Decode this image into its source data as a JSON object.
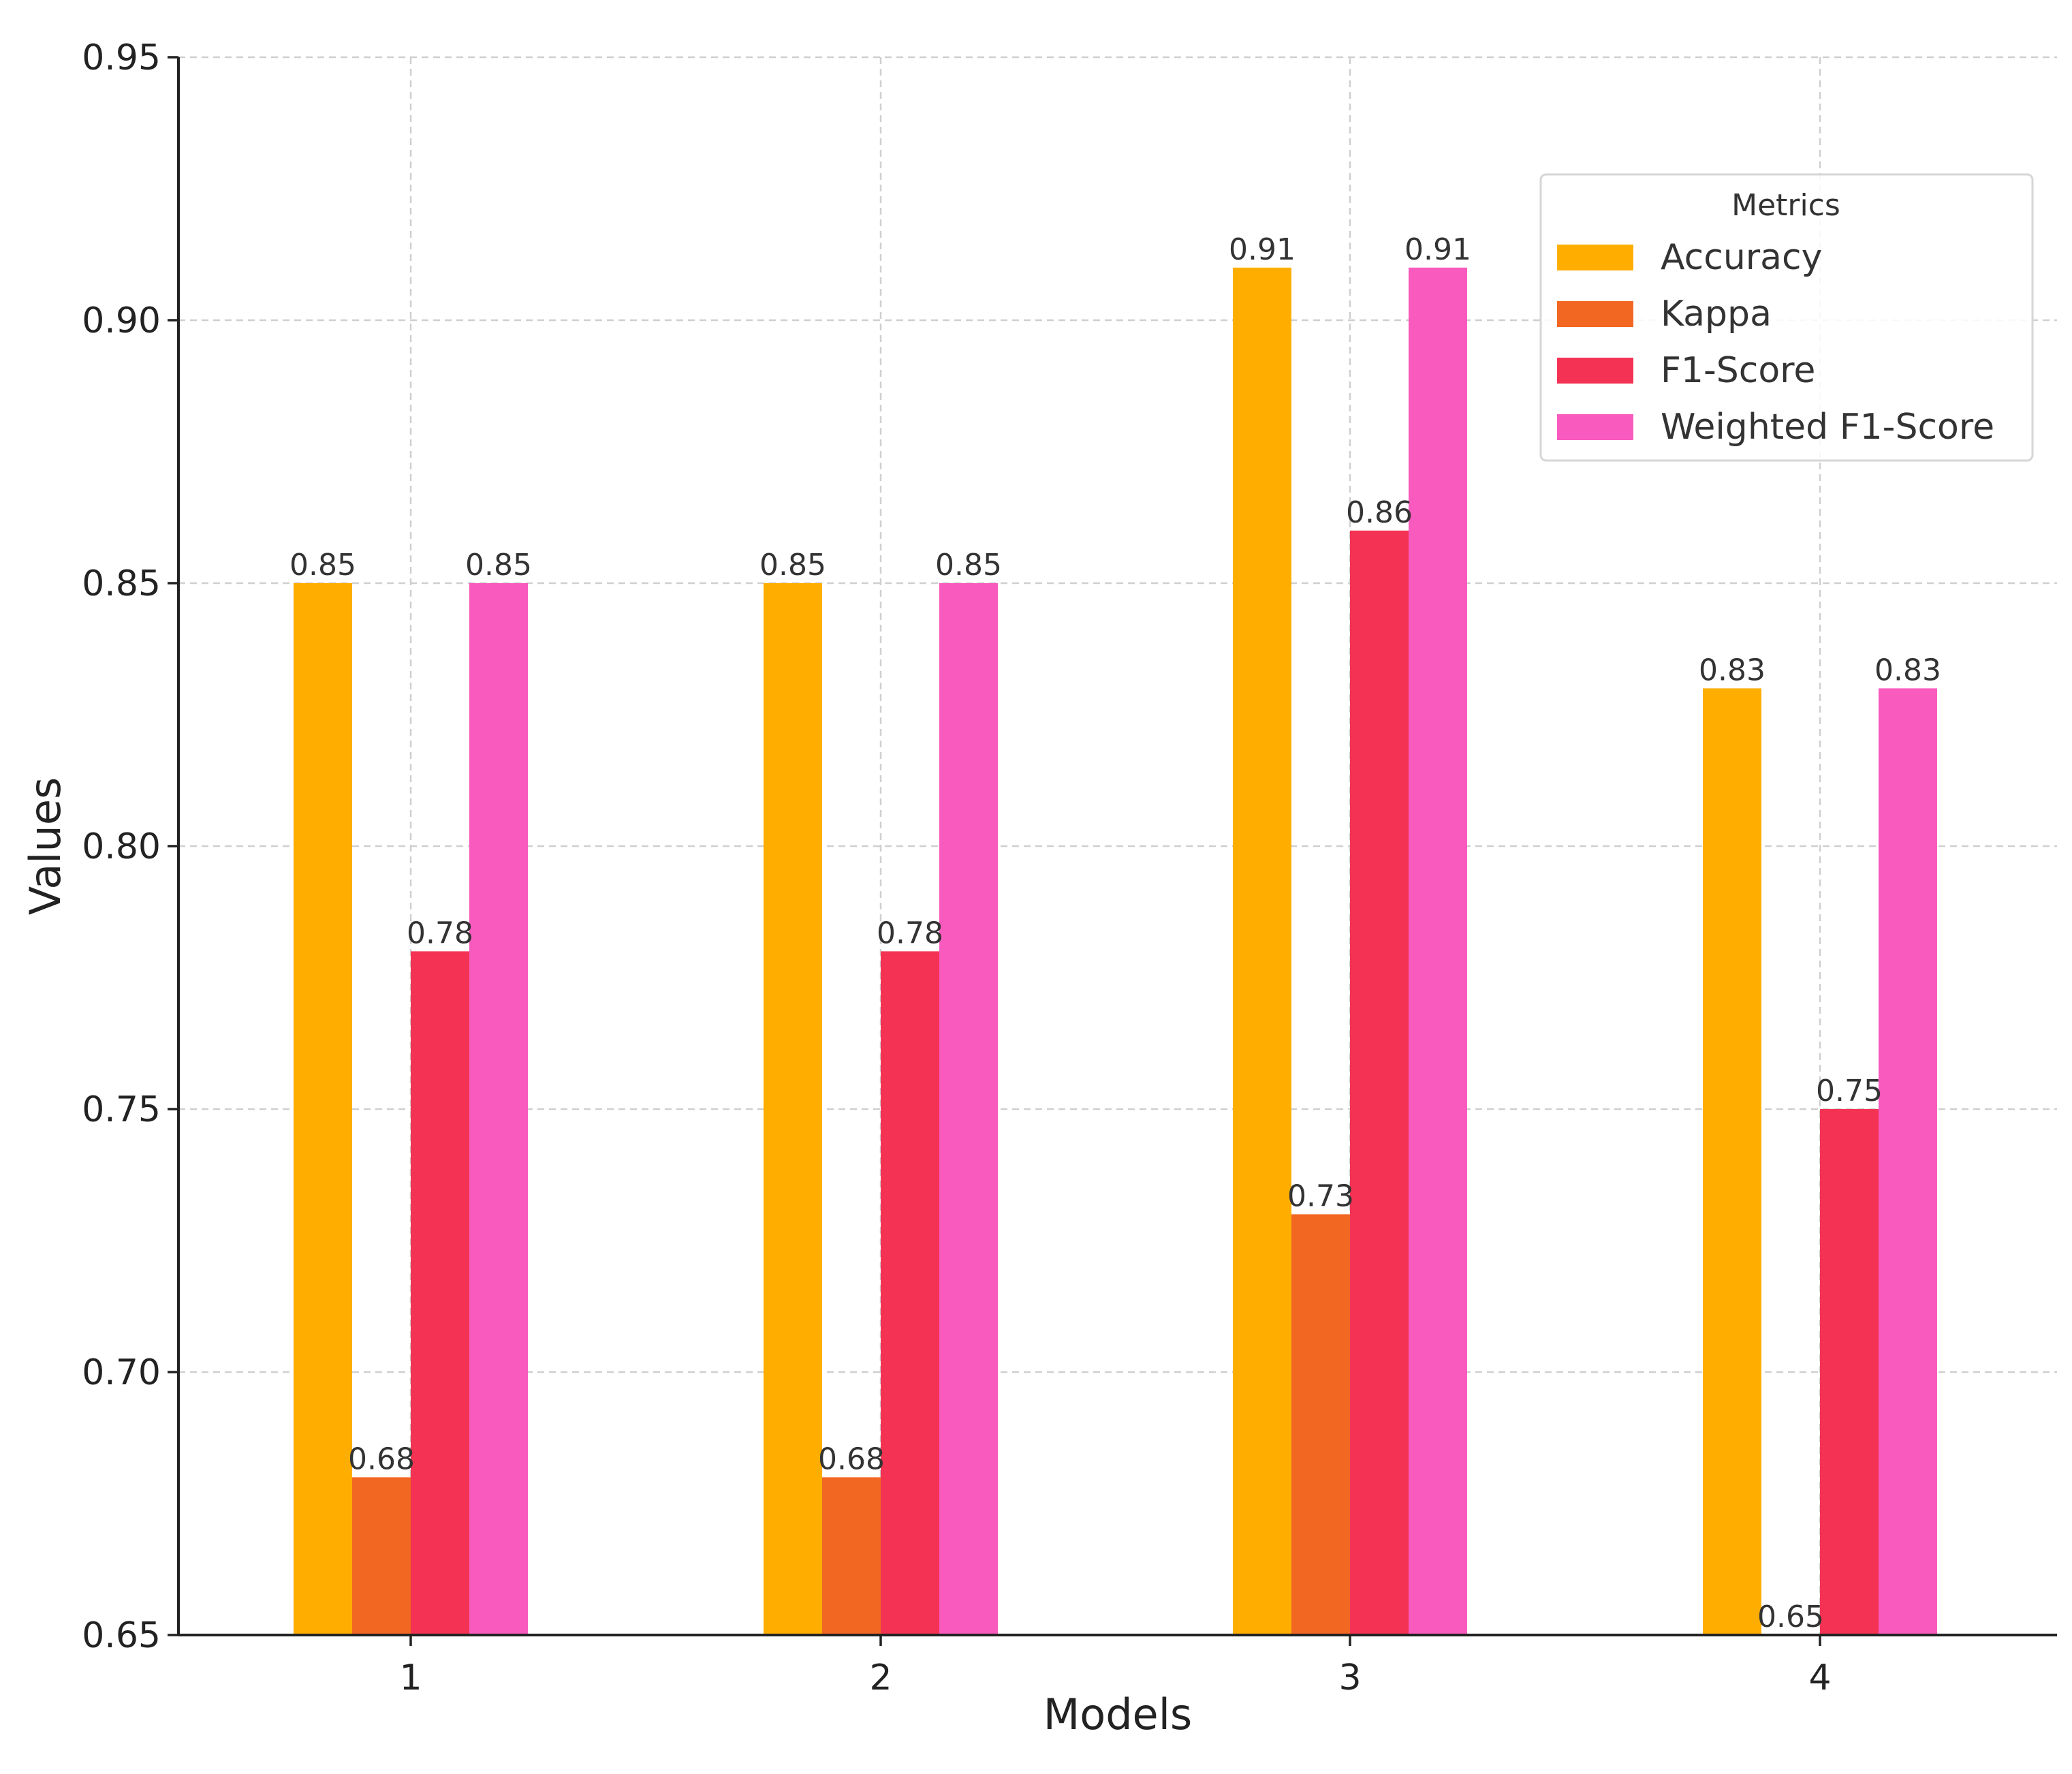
{
  "chart_data": {
    "type": "bar",
    "title": "",
    "xlabel": "Models",
    "ylabel": "Values",
    "categories": [
      "1",
      "2",
      "3",
      "4"
    ],
    "ylim": [
      0.65,
      0.95
    ],
    "yticks": [
      0.65,
      0.7,
      0.75,
      0.8,
      0.85,
      0.9,
      0.95
    ],
    "ytick_labels": [
      "0.65",
      "0.70",
      "0.75",
      "0.80",
      "0.85",
      "0.90",
      "0.95"
    ],
    "grid": true,
    "legend": {
      "title": "Metrics",
      "placement": "upper-right"
    },
    "series": [
      {
        "name": "Accuracy",
        "color": "#FFAE00",
        "values": [
          0.85,
          0.85,
          0.91,
          0.83
        ],
        "labels": [
          "0.85",
          "0.85",
          "0.91",
          "0.83"
        ]
      },
      {
        "name": "Kappa",
        "color": "#F26722",
        "values": [
          0.68,
          0.68,
          0.73,
          0.65
        ],
        "labels": [
          "0.68",
          "0.68",
          "0.73",
          "0.65"
        ]
      },
      {
        "name": "F1-Score",
        "color": "#F43253",
        "values": [
          0.78,
          0.78,
          0.86,
          0.75
        ],
        "labels": [
          "0.78",
          "0.78",
          "0.86",
          "0.75"
        ]
      },
      {
        "name": "Weighted F1-Score",
        "color": "#F85ABE",
        "values": [
          0.85,
          0.85,
          0.91,
          0.83
        ],
        "labels": [
          "0.85",
          "0.85",
          "0.91",
          "0.83"
        ]
      }
    ]
  }
}
